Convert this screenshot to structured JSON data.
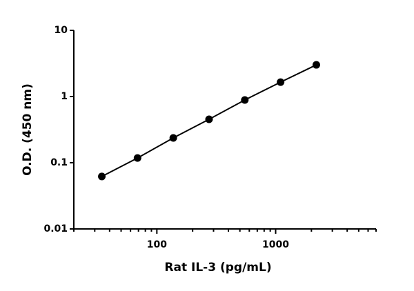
{
  "chart_data": {
    "type": "scatter",
    "x_label": "Rat IL-3 (pg/mL)",
    "y_label": "O.D. (450 nm)",
    "x_scale": "log",
    "y_scale": "log",
    "xlim": [
      20,
      7000
    ],
    "ylim": [
      0.01,
      10
    ],
    "xticks": [
      100,
      1000
    ],
    "yticks": [
      0.01,
      0.1,
      1,
      10
    ],
    "series": [
      {
        "color": "#000000",
        "x": [
          34.4,
          68.75,
          137.5,
          275,
          550,
          1100,
          2200
        ],
        "values": [
          0.062,
          0.118,
          0.237,
          0.453,
          0.887,
          1.65,
          3.01
        ]
      }
    ]
  }
}
